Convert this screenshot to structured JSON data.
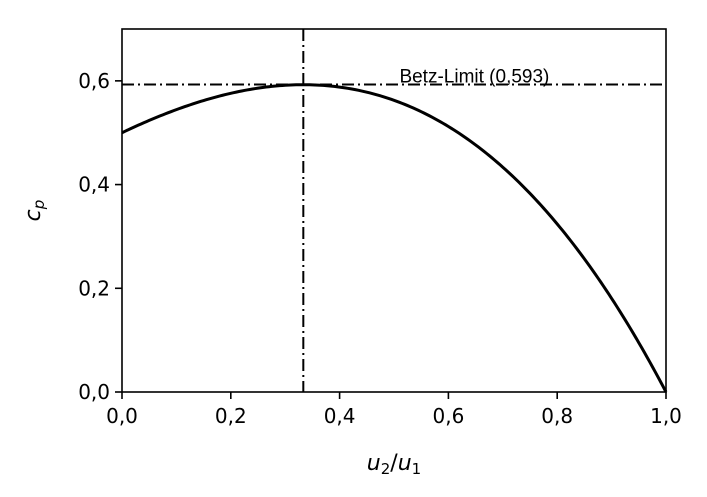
{
  "chart_data": {
    "type": "line",
    "xlabel": "u2/u1",
    "xlabel_parts": {
      "base1": "u",
      "sub1": "2",
      "slash": "/",
      "base2": "u",
      "sub2": "1"
    },
    "ylabel_parts": {
      "base": "c",
      "sub": "p"
    },
    "xlim": [
      0.0,
      1.0
    ],
    "ylim": [
      0.0,
      0.7
    ],
    "xticks": [
      0.0,
      0.2,
      0.4,
      0.6,
      0.8,
      1.0
    ],
    "xtick_labels": [
      "0,0",
      "0,2",
      "0,4",
      "0,6",
      "0,8",
      "1,0"
    ],
    "yticks": [
      0.0,
      0.2,
      0.4,
      0.6
    ],
    "ytick_labels": [
      "0,0",
      "0,2",
      "0,4",
      "0,6"
    ],
    "grid": false,
    "series": [
      {
        "x": [
          0.0,
          0.05,
          0.1,
          0.15,
          0.2,
          0.25,
          0.3,
          0.3333,
          0.35,
          0.4,
          0.45,
          0.5,
          0.55,
          0.6,
          0.65,
          0.7,
          0.75,
          0.8,
          0.85,
          0.9,
          0.95,
          1.0
        ],
        "y": [
          0.5,
          0.5236,
          0.5445,
          0.5624,
          0.576,
          0.5859,
          0.5915,
          0.5926,
          0.5923,
          0.588,
          0.5778,
          0.5625,
          0.5398,
          0.512,
          0.4766,
          0.4335,
          0.3828,
          0.324,
          0.2571,
          0.1805,
          0.0964,
          0.0
        ]
      }
    ],
    "reference_lines": {
      "horizontal": {
        "y": 0.593,
        "style": "dashdot"
      },
      "vertical": {
        "x": 0.3333,
        "style": "dashdot"
      }
    },
    "annotation": {
      "text": "Betz-Limit (0,593)",
      "x": 0.51,
      "y": 0.61
    }
  }
}
